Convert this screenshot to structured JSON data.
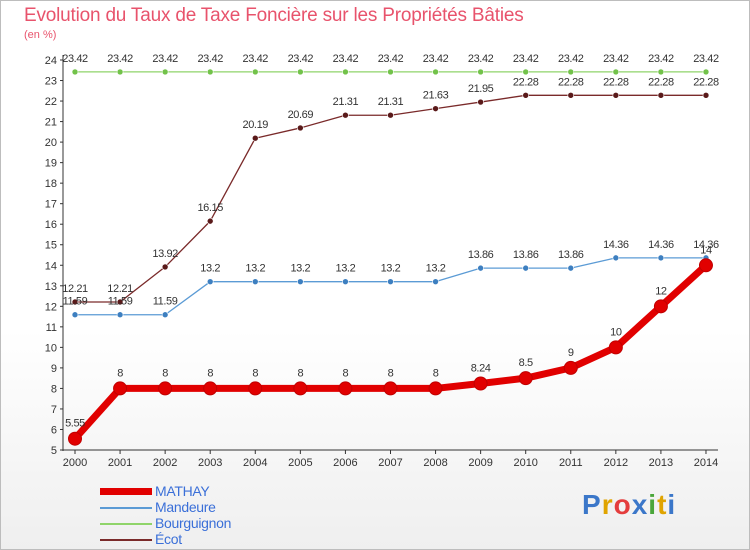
{
  "title": "Evolution du Taux de Taxe Foncière sur les Propriétés Bâties",
  "subtitle": "(en %)",
  "logo": {
    "text": "Proxiti",
    "letter_colors": [
      "#3b77c9",
      "#e0a400",
      "#e43d3d",
      "#3b77c9",
      "#4aa63a",
      "#e0a400",
      "#3b77c9"
    ]
  },
  "chart_data": {
    "type": "line",
    "title": "Evolution du Taux de Taxe Foncière sur les Propriétés Bâties",
    "ylabel": "(en %)",
    "xlabel": "",
    "x": [
      "2000",
      "2001",
      "2002",
      "2003",
      "2004",
      "2005",
      "2006",
      "2007",
      "2008",
      "2009",
      "2010",
      "2011",
      "2012",
      "2013",
      "2014"
    ],
    "ylim": [
      5,
      24
    ],
    "yticks": [
      "5",
      "6",
      "7",
      "8",
      "9",
      "10",
      "11",
      "12",
      "13",
      "14",
      "15",
      "16",
      "17",
      "18",
      "19",
      "20",
      "21",
      "22",
      "23",
      "24"
    ],
    "grid": false,
    "legend": "bottom-left",
    "series": [
      {
        "name": "MATHAY",
        "color": "#e10000",
        "values": [
          5.55,
          8,
          8,
          8,
          8,
          8,
          8,
          8,
          8,
          8.24,
          8.5,
          9,
          10,
          12,
          14
        ],
        "labels": [
          "5.55",
          "8",
          "8",
          "8",
          "8",
          "8",
          "8",
          "8",
          "8",
          "8.24",
          "8.5",
          "9",
          "10",
          "12",
          "14"
        ]
      },
      {
        "name": "Mandeure",
        "color": "#5b9bd5",
        "values": [
          11.59,
          11.59,
          11.59,
          13.2,
          13.2,
          13.2,
          13.2,
          13.2,
          13.2,
          13.86,
          13.86,
          13.86,
          14.36,
          14.36,
          14.36
        ],
        "labels": [
          "11.59",
          "11.59",
          "11.59",
          "13.2",
          "13.2",
          "13.2",
          "13.2",
          "13.2",
          "13.2",
          "13.86",
          "13.86",
          "13.86",
          "14.36",
          "14.36",
          "14.36"
        ]
      },
      {
        "name": "Bourguignon",
        "color": "#8fd46a",
        "values": [
          23.42,
          23.42,
          23.42,
          23.42,
          23.42,
          23.42,
          23.42,
          23.42,
          23.42,
          23.42,
          23.42,
          23.42,
          23.42,
          23.42,
          23.42
        ],
        "labels": [
          "23.42",
          "23.42",
          "23.42",
          "23.42",
          "23.42",
          "23.42",
          "23.42",
          "23.42",
          "23.42",
          "23.42",
          "23.42",
          "23.42",
          "23.42",
          "23.42",
          "23.42"
        ]
      },
      {
        "name": "Écot",
        "color": "#7a2a2a",
        "values": [
          12.21,
          12.21,
          13.92,
          16.15,
          20.19,
          20.69,
          21.31,
          21.31,
          21.63,
          21.95,
          22.28,
          22.28,
          22.28,
          22.28,
          22.28
        ],
        "labels": [
          "12.21",
          "12.21",
          "13.92",
          "16.15",
          "20.19",
          "20.69",
          "21.31",
          "21.31",
          "21.63",
          "21.95",
          "22.28",
          "22.28",
          "22.28",
          "22.28",
          "22.28"
        ]
      }
    ]
  }
}
